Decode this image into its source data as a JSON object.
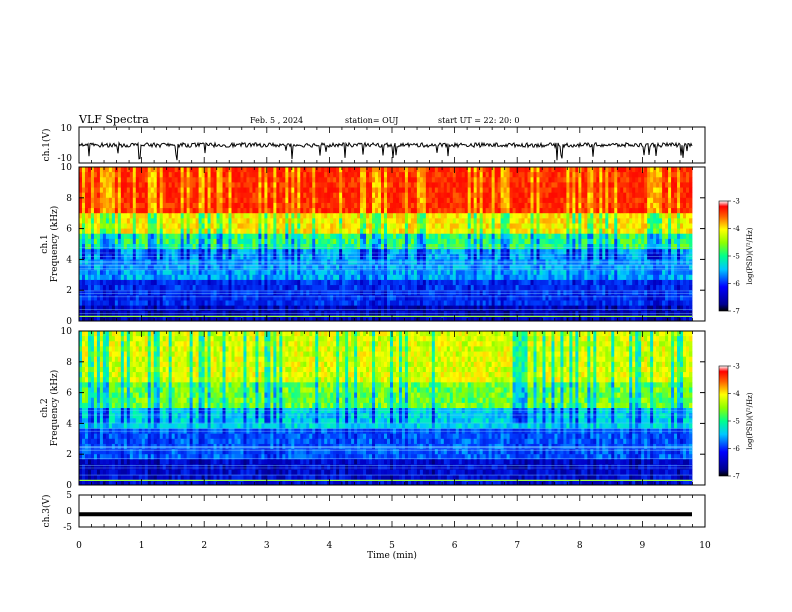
{
  "header": {
    "title": "VLF Spectra",
    "date": "Feb. 5 , 2024",
    "station": "station= OUJ",
    "start_time": "start UT = 22: 20: 0"
  },
  "chart_data": [
    {
      "type": "line",
      "name": "waveform-ch1",
      "ylabel": "ch.1(V)",
      "ylim": [
        -10,
        10
      ],
      "yticks": [
        "10",
        "-10"
      ],
      "xlim": [
        0,
        10
      ],
      "baseline": 0,
      "amplitude_note": "noisy trace around 0 V with small dips"
    },
    {
      "type": "heatmap",
      "name": "spectrogram-ch1",
      "ylabel": "ch.1\nFrequency (kHz)",
      "ylabel_lines": [
        "ch.1",
        "Frequency (kHz)"
      ],
      "ylim": [
        0,
        10
      ],
      "yticks": [
        "0",
        "2",
        "4",
        "6",
        "8",
        "10"
      ],
      "xlim": [
        0,
        10
      ],
      "colorbar": {
        "label": "log(PSD)(V²/Hz)",
        "ticks": [
          "-3",
          "-4",
          "-5",
          "-6",
          "-7"
        ],
        "range": [
          -7,
          -3
        ]
      }
    },
    {
      "type": "heatmap",
      "name": "spectrogram-ch2",
      "ylabel": "ch.2\nFrequency (kHz)",
      "ylabel_lines": [
        "ch.2",
        "Frequency (kHz)"
      ],
      "ylim": [
        0,
        10
      ],
      "yticks": [
        "0",
        "2",
        "4",
        "6",
        "8",
        "10"
      ],
      "xlim": [
        0,
        10
      ],
      "colorbar": {
        "label": "log(PSD)(V²/Hz)",
        "ticks": [
          "-3",
          "-4",
          "-5",
          "-6",
          "-7"
        ],
        "range": [
          -7,
          -3
        ]
      }
    },
    {
      "type": "line",
      "name": "waveform-ch3",
      "ylabel": "ch.3(V)",
      "ylim": [
        -5,
        5
      ],
      "yticks": [
        "5",
        "0",
        "-5"
      ],
      "xlim": [
        0,
        10
      ],
      "baseline": -1.0
    }
  ],
  "x_axis": {
    "label": "Time (min)",
    "ticks": [
      "0",
      "1",
      "2",
      "3",
      "4",
      "5",
      "6",
      "7",
      "8",
      "9",
      "10"
    ]
  }
}
